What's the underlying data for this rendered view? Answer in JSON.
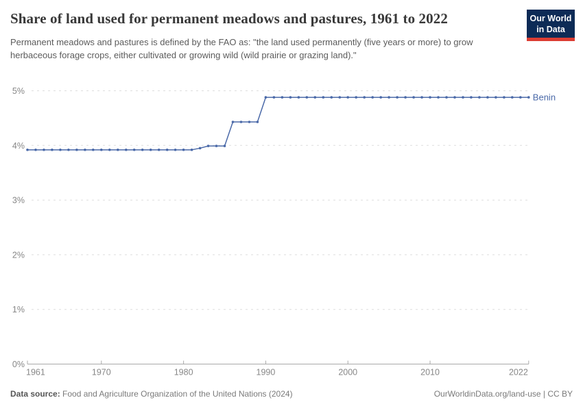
{
  "header": {
    "title": "Share of land used for permanent meadows and pastures, 1961 to 2022",
    "subtitle": "Permanent meadows and pastures is defined by the FAO as: \"the land used permanently (five years or more) to grow herbaceous forage crops, either cultivated or growing wild (wild prairie or grazing land).\""
  },
  "logo": {
    "line1": "Our World",
    "line2": "in Data",
    "bg_color": "#0d2b56",
    "bar_color": "#dc3d33"
  },
  "footer": {
    "source_label": "Data source:",
    "source_text": " Food and Agriculture Organization of the United Nations (2024)",
    "link_text": "OurWorldinData.org/land-use | CC BY"
  },
  "chart_data": {
    "type": "line",
    "title": "Share of land used for permanent meadows and pastures, 1961 to 2022",
    "xlabel": "",
    "ylabel": "",
    "xlim": [
      1961,
      2022
    ],
    "ylim": [
      0,
      5
    ],
    "x_ticks": [
      1961,
      1970,
      1980,
      1990,
      2000,
      2010,
      2022
    ],
    "y_ticks": [
      0,
      1,
      2,
      3,
      4,
      5
    ],
    "y_tick_suffix": "%",
    "grid": "horizontal-dashed",
    "legend_position": "end-of-line-label",
    "series": [
      {
        "name": "Benin",
        "color": "#4a69a8",
        "x": [
          1961,
          1962,
          1963,
          1964,
          1965,
          1966,
          1967,
          1968,
          1969,
          1970,
          1971,
          1972,
          1973,
          1974,
          1975,
          1976,
          1977,
          1978,
          1979,
          1980,
          1981,
          1982,
          1983,
          1984,
          1985,
          1986,
          1987,
          1988,
          1989,
          1990,
          1991,
          1992,
          1993,
          1994,
          1995,
          1996,
          1997,
          1998,
          1999,
          2000,
          2001,
          2002,
          2003,
          2004,
          2005,
          2006,
          2007,
          2008,
          2009,
          2010,
          2011,
          2012,
          2013,
          2014,
          2015,
          2016,
          2017,
          2018,
          2019,
          2020,
          2021,
          2022
        ],
        "values": [
          3.92,
          3.92,
          3.92,
          3.92,
          3.92,
          3.92,
          3.92,
          3.92,
          3.92,
          3.92,
          3.92,
          3.92,
          3.92,
          3.92,
          3.92,
          3.92,
          3.92,
          3.92,
          3.92,
          3.92,
          3.92,
          3.95,
          3.99,
          3.99,
          3.99,
          4.43,
          4.43,
          4.43,
          4.43,
          4.88,
          4.88,
          4.88,
          4.88,
          4.88,
          4.88,
          4.88,
          4.88,
          4.88,
          4.88,
          4.88,
          4.88,
          4.88,
          4.88,
          4.88,
          4.88,
          4.88,
          4.88,
          4.88,
          4.88,
          4.88,
          4.88,
          4.88,
          4.88,
          4.88,
          4.88,
          4.88,
          4.88,
          4.88,
          4.88,
          4.88,
          4.88,
          4.88
        ]
      }
    ]
  }
}
